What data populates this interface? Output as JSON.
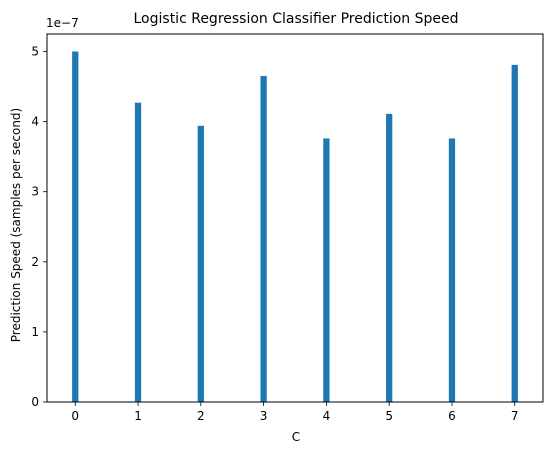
{
  "chart_data": {
    "type": "bar",
    "title": "Logistic Regression Classifier Prediction Speed",
    "xlabel": "C",
    "ylabel": "Prediction Speed (samples per second)",
    "y_offset_label": "1e−7",
    "categories": [
      0,
      1,
      2,
      3,
      4,
      5,
      6,
      7
    ],
    "values": [
      5e-07,
      4.27e-07,
      3.94e-07,
      4.65e-07,
      3.76e-07,
      4.11e-07,
      3.76e-07,
      4.81e-07
    ],
    "xlim": [
      -0.45,
      7.45
    ],
    "ylim": [
      0,
      5.25e-07
    ],
    "xticks": [
      "0",
      "1",
      "2",
      "3",
      "4",
      "5",
      "6",
      "7"
    ],
    "yticks": [
      "0",
      "1",
      "2",
      "3",
      "4",
      "5"
    ],
    "ytick_values": [
      0,
      1e-07,
      2e-07,
      3e-07,
      4e-07,
      5e-07
    ],
    "bar_color": "#1f77b4",
    "grid": false
  }
}
